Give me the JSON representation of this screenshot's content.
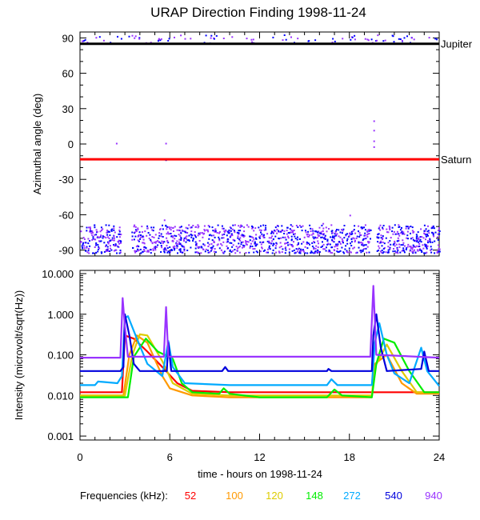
{
  "chart_data": [
    {
      "type": "scatter",
      "title": "URAP Direction Finding  1998-11-24",
      "ylabel": "Azimuthal angle (deg)",
      "xlim": [
        0,
        24
      ],
      "ylim": [
        -95,
        95
      ],
      "yticks": [
        {
          "value": 90,
          "label": "90"
        },
        {
          "value": 60,
          "label": "60"
        },
        {
          "value": 30,
          "label": "30"
        },
        {
          "value": 0,
          "label": "0"
        },
        {
          "value": -30,
          "label": "-30"
        },
        {
          "value": -60,
          "label": "-60"
        },
        {
          "value": -90,
          "label": "-90"
        }
      ],
      "reference_lines": [
        {
          "name": "Jupiter",
          "value": 85,
          "color": "#000000"
        },
        {
          "name": "Saturn",
          "value": -13,
          "color": "#ff0000"
        }
      ],
      "scatter_bands": [
        {
          "y_range": [
            -92,
            -72
          ],
          "x_range": [
            0,
            24
          ],
          "density": "high",
          "colors": [
            "#0000ff",
            "#9933ff"
          ]
        },
        {
          "y_range": [
            86,
            93
          ],
          "x_range": [
            0,
            24
          ],
          "density": "low",
          "colors": [
            "#0000ff",
            "#9933ff"
          ]
        }
      ],
      "outliers": [
        {
          "x": 19.6,
          "y": 20
        },
        {
          "x": 19.6,
          "y": 12
        },
        {
          "x": 19.6,
          "y": 3
        },
        {
          "x": 19.6,
          "y": -2
        },
        {
          "x": 2.4,
          "y": 1
        },
        {
          "x": 5.7,
          "y": 1
        },
        {
          "x": 5.7,
          "y": -13
        },
        {
          "x": 18.0,
          "y": -60
        },
        {
          "x": 16.2,
          "y": -67
        },
        {
          "x": 5.6,
          "y": -64
        }
      ]
    },
    {
      "type": "line",
      "ylabel": "Intensity (microvolt/sqrt(Hz))",
      "xlabel": "time - hours on 1998-11-24",
      "yscale": "log",
      "xlim": [
        0,
        24
      ],
      "ylim": [
        0.0008,
        12
      ],
      "xticks": [
        {
          "value": 0,
          "label": "0"
        },
        {
          "value": 6,
          "label": "6"
        },
        {
          "value": 12,
          "label": "12"
        },
        {
          "value": 18,
          "label": "18"
        },
        {
          "value": 24,
          "label": "24"
        }
      ],
      "yticks": [
        {
          "value": 10,
          "label": "10.000"
        },
        {
          "value": 1,
          "label": "1.000"
        },
        {
          "value": 0.1,
          "label": "0.100"
        },
        {
          "value": 0.01,
          "label": "0.010"
        },
        {
          "value": 0.001,
          "label": "0.001"
        }
      ],
      "legend_title": "Frequencies (kHz):",
      "series": [
        {
          "name": "52",
          "color": "#ff0000",
          "points": [
            [
              0,
              0.012
            ],
            [
              2.8,
              0.012
            ],
            [
              3.0,
              0.3
            ],
            [
              3.6,
              0.25
            ],
            [
              4.5,
              0.12
            ],
            [
              5.5,
              0.05
            ],
            [
              6.5,
              0.02
            ],
            [
              7.5,
              0.013
            ],
            [
              10,
              0.012
            ],
            [
              19.5,
              0.012
            ],
            [
              19.8,
              0.012
            ],
            [
              24,
              0.012
            ]
          ]
        },
        {
          "name": "100",
          "color": "#ff9900",
          "points": [
            [
              0,
              0.01
            ],
            [
              2.9,
              0.01
            ],
            [
              3.3,
              0.1
            ],
            [
              3.8,
              0.3
            ],
            [
              4.5,
              0.2
            ],
            [
              5.5,
              0.03
            ],
            [
              6,
              0.015
            ],
            [
              7.5,
              0.01
            ],
            [
              10,
              0.009
            ],
            [
              19.5,
              0.009
            ],
            [
              19.7,
              0.06
            ],
            [
              20.5,
              0.1
            ],
            [
              21.5,
              0.02
            ],
            [
              22.5,
              0.011
            ],
            [
              24,
              0.011
            ]
          ]
        },
        {
          "name": "120",
          "color": "#ddcc00",
          "points": [
            [
              0,
              0.01
            ],
            [
              3,
              0.01
            ],
            [
              3.5,
              0.1
            ],
            [
              4,
              0.32
            ],
            [
              4.5,
              0.3
            ],
            [
              5.5,
              0.07
            ],
            [
              6.2,
              0.02
            ],
            [
              7.5,
              0.011
            ],
            [
              10,
              0.01
            ],
            [
              19.5,
              0.01
            ],
            [
              19.7,
              0.05
            ],
            [
              20.5,
              0.18
            ],
            [
              21.5,
              0.04
            ],
            [
              22.5,
              0.012
            ],
            [
              24,
              0.012
            ]
          ]
        },
        {
          "name": "148",
          "color": "#00ee00",
          "points": [
            [
              0,
              0.009
            ],
            [
              3.2,
              0.009
            ],
            [
              3.6,
              0.09
            ],
            [
              4.4,
              0.25
            ],
            [
              5.2,
              0.12
            ],
            [
              6.2,
              0.08
            ],
            [
              6.8,
              0.02
            ],
            [
              7.5,
              0.012
            ],
            [
              9.3,
              0.011
            ],
            [
              9.6,
              0.015
            ],
            [
              10,
              0.011
            ],
            [
              12,
              0.009
            ],
            [
              16.5,
              0.009
            ],
            [
              17,
              0.014
            ],
            [
              17.5,
              0.01
            ],
            [
              19.5,
              0.009
            ],
            [
              19.8,
              0.06
            ],
            [
              20.3,
              0.25
            ],
            [
              21,
              0.2
            ],
            [
              22,
              0.04
            ],
            [
              23,
              0.012
            ],
            [
              24,
              0.012
            ]
          ]
        },
        {
          "name": "272",
          "color": "#00aaff",
          "points": [
            [
              0,
              0.018
            ],
            [
              1,
              0.018
            ],
            [
              1.2,
              0.022
            ],
            [
              2.5,
              0.02
            ],
            [
              2.8,
              0.03
            ],
            [
              3.0,
              0.8
            ],
            [
              3.2,
              0.9
            ],
            [
              3.8,
              0.25
            ],
            [
              4.5,
              0.06
            ],
            [
              5.5,
              0.03
            ],
            [
              5.9,
              0.22
            ],
            [
              6.2,
              0.05
            ],
            [
              7,
              0.02
            ],
            [
              10,
              0.018
            ],
            [
              16.5,
              0.018
            ],
            [
              16.8,
              0.025
            ],
            [
              17.2,
              0.018
            ],
            [
              19.5,
              0.018
            ],
            [
              19.7,
              0.2
            ],
            [
              20,
              0.6
            ],
            [
              20.5,
              0.1
            ],
            [
              21,
              0.035
            ],
            [
              22,
              0.02
            ],
            [
              22.8,
              0.15
            ],
            [
              23.2,
              0.04
            ],
            [
              24,
              0.017
            ]
          ]
        },
        {
          "name": "540",
          "color": "#0000dd",
          "points": [
            [
              0,
              0.04
            ],
            [
              2.7,
              0.04
            ],
            [
              2.9,
              0.05
            ],
            [
              3.0,
              1.0
            ],
            [
              3.3,
              0.3
            ],
            [
              3.6,
              0.06
            ],
            [
              4,
              0.04
            ],
            [
              5.8,
              0.04
            ],
            [
              5.9,
              0.2
            ],
            [
              6.1,
              0.04
            ],
            [
              9.5,
              0.04
            ],
            [
              9.7,
              0.05
            ],
            [
              9.9,
              0.04
            ],
            [
              16.5,
              0.04
            ],
            [
              16.6,
              0.045
            ],
            [
              16.8,
              0.04
            ],
            [
              19.5,
              0.04
            ],
            [
              19.6,
              0.3
            ],
            [
              19.8,
              1.0
            ],
            [
              20.1,
              0.15
            ],
            [
              20.5,
              0.04
            ],
            [
              22.8,
              0.045
            ],
            [
              23,
              0.12
            ],
            [
              23.3,
              0.04
            ],
            [
              24,
              0.04
            ]
          ]
        },
        {
          "name": "940",
          "color": "#9933ff",
          "points": [
            [
              0,
              0.085
            ],
            [
              2.7,
              0.085
            ],
            [
              2.85,
              2.5
            ],
            [
              3.0,
              0.5
            ],
            [
              3.2,
              0.09
            ],
            [
              5.6,
              0.09
            ],
            [
              5.75,
              1.5
            ],
            [
              5.9,
              0.09
            ],
            [
              19.4,
              0.09
            ],
            [
              19.6,
              5.0
            ],
            [
              19.8,
              0.1
            ],
            [
              24,
              0.085
            ]
          ]
        }
      ]
    }
  ]
}
